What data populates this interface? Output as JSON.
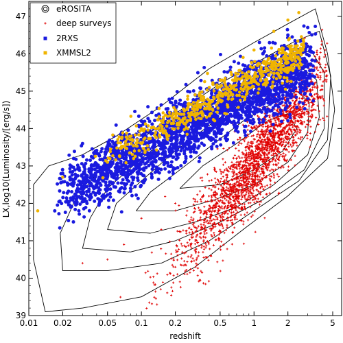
{
  "chart_data": {
    "type": "scatter",
    "xlabel": "redshift",
    "ylabel": "LX,log10(Luminosity/[erg/s])",
    "x_scale": "log",
    "xlim": [
      0.01,
      6
    ],
    "ylim": [
      39,
      47.4
    ],
    "x_ticks": [
      {
        "value": 0.01,
        "label": "0.01"
      },
      {
        "value": 0.02,
        "label": "0.02"
      },
      {
        "value": 0.05,
        "label": "0.05"
      },
      {
        "value": 0.1,
        "label": "0.1"
      },
      {
        "value": 0.2,
        "label": "0.2"
      },
      {
        "value": 0.5,
        "label": "0.5"
      },
      {
        "value": 1,
        "label": "1"
      },
      {
        "value": 2,
        "label": "2"
      },
      {
        "value": 5,
        "label": "5"
      }
    ],
    "y_ticks": [
      {
        "value": 39,
        "label": "39"
      },
      {
        "value": 40,
        "label": "40"
      },
      {
        "value": 41,
        "label": "41"
      },
      {
        "value": 42,
        "label": "42"
      },
      {
        "value": 43,
        "label": "43"
      },
      {
        "value": 44,
        "label": "44"
      },
      {
        "value": 45,
        "label": "45"
      },
      {
        "value": 46,
        "label": "46"
      },
      {
        "value": 47,
        "label": "47"
      }
    ],
    "grid": false,
    "legend_position": "top-left",
    "series": [
      {
        "name": "eROSITA",
        "kind": "contour",
        "color": "#000000",
        "levels": [
          [
            [
              0.014,
              39.1
            ],
            [
              0.03,
              39.2
            ],
            [
              0.1,
              39.5
            ],
            [
              0.3,
              40.3
            ],
            [
              0.8,
              41.3
            ],
            [
              2.0,
              42.2
            ],
            [
              4.5,
              43.2
            ],
            [
              5.2,
              44.5
            ],
            [
              4.5,
              46.0
            ],
            [
              3.5,
              47.2
            ],
            [
              2.0,
              46.8
            ],
            [
              1.0,
              46.3
            ],
            [
              0.4,
              45.6
            ],
            [
              0.15,
              44.6
            ],
            [
              0.06,
              43.8
            ],
            [
              0.03,
              43.3
            ],
            [
              0.015,
              43.0
            ],
            [
              0.011,
              42.5
            ],
            [
              0.011,
              40.5
            ],
            [
              0.014,
              39.1
            ]
          ],
          [
            [
              0.02,
              40.2
            ],
            [
              0.05,
              40.2
            ],
            [
              0.15,
              40.4
            ],
            [
              0.4,
              41.0
            ],
            [
              1.0,
              41.8
            ],
            [
              2.5,
              42.6
            ],
            [
              4.5,
              43.7
            ],
            [
              4.8,
              45.4
            ],
            [
              3.8,
              46.6
            ],
            [
              2.2,
              46.3
            ],
            [
              1.1,
              45.8
            ],
            [
              0.5,
              45.2
            ],
            [
              0.2,
              44.4
            ],
            [
              0.08,
              43.5
            ],
            [
              0.04,
              42.8
            ],
            [
              0.025,
              42.0
            ],
            [
              0.019,
              41.2
            ],
            [
              0.02,
              40.2
            ]
          ],
          [
            [
              0.03,
              40.8
            ],
            [
              0.08,
              40.7
            ],
            [
              0.2,
              41.0
            ],
            [
              0.5,
              41.5
            ],
            [
              1.2,
              42.1
            ],
            [
              2.8,
              42.9
            ],
            [
              4.2,
              44.0
            ],
            [
              4.2,
              45.5
            ],
            [
              3.2,
              46.1
            ],
            [
              2.0,
              45.8
            ],
            [
              1.0,
              45.3
            ],
            [
              0.5,
              44.8
            ],
            [
              0.22,
              44.0
            ],
            [
              0.1,
              43.2
            ],
            [
              0.05,
              42.4
            ],
            [
              0.035,
              41.6
            ],
            [
              0.03,
              40.8
            ]
          ],
          [
            [
              0.05,
              41.3
            ],
            [
              0.12,
              41.2
            ],
            [
              0.3,
              41.5
            ],
            [
              0.7,
              41.9
            ],
            [
              1.5,
              42.5
            ],
            [
              3.0,
              43.3
            ],
            [
              3.8,
              44.3
            ],
            [
              3.6,
              45.3
            ],
            [
              2.7,
              45.6
            ],
            [
              1.7,
              45.3
            ],
            [
              0.9,
              44.8
            ],
            [
              0.45,
              44.2
            ],
            [
              0.2,
              43.4
            ],
            [
              0.1,
              42.6
            ],
            [
              0.06,
              42.0
            ],
            [
              0.05,
              41.3
            ]
          ],
          [
            [
              0.09,
              41.8
            ],
            [
              0.2,
              41.8
            ],
            [
              0.45,
              42.1
            ],
            [
              1.0,
              42.5
            ],
            [
              2.0,
              43.1
            ],
            [
              3.0,
              43.9
            ],
            [
              3.1,
              44.7
            ],
            [
              2.4,
              45.0
            ],
            [
              1.5,
              44.7
            ],
            [
              0.8,
              44.2
            ],
            [
              0.4,
              43.5
            ],
            [
              0.2,
              42.8
            ],
            [
              0.12,
              42.3
            ],
            [
              0.09,
              41.8
            ]
          ],
          [
            [
              0.22,
              42.4
            ],
            [
              0.5,
              42.5
            ],
            [
              1.0,
              42.9
            ],
            [
              1.8,
              43.4
            ],
            [
              2.4,
              44.0
            ],
            [
              2.0,
              44.4
            ],
            [
              1.3,
              44.2
            ],
            [
              0.7,
              43.6
            ],
            [
              0.35,
              43.0
            ],
            [
              0.22,
              42.4
            ]
          ]
        ]
      },
      {
        "name": "deep surveys",
        "kind": "scatter",
        "marker": "plus",
        "color": "#e00000",
        "cloud": {
          "center": [
            1.1,
            43.2
          ],
          "count": 2400
        },
        "points": [
          [
            0.03,
            40.4
          ],
          [
            0.05,
            40.5
          ],
          [
            0.07,
            40.9
          ],
          [
            0.1,
            41.6
          ],
          [
            0.15,
            41.3
          ],
          [
            0.2,
            42.0
          ],
          [
            0.3,
            42.1
          ],
          [
            0.4,
            42.6
          ],
          [
            0.5,
            42.9
          ],
          [
            0.7,
            43.1
          ],
          [
            1.0,
            43.3
          ],
          [
            1.4,
            43.8
          ],
          [
            2.0,
            44.3
          ],
          [
            2.5,
            44.2
          ],
          [
            3.0,
            43.9
          ]
        ]
      },
      {
        "name": "2RXS",
        "kind": "scatter",
        "marker": "circle",
        "color": "#1a1adf",
        "cloud": {
          "center": [
            0.25,
            44.1
          ],
          "count": 2600
        },
        "points": [
          [
            0.017,
            41.8
          ],
          [
            0.02,
            42.8
          ],
          [
            0.025,
            43.2
          ],
          [
            0.03,
            43.6
          ],
          [
            0.05,
            43.0
          ],
          [
            0.07,
            43.8
          ],
          [
            0.1,
            44.2
          ],
          [
            0.2,
            44.6
          ],
          [
            0.3,
            44.9
          ],
          [
            0.5,
            45.3
          ],
          [
            0.8,
            45.7
          ],
          [
            1.2,
            46.0
          ],
          [
            2.0,
            46.5
          ],
          [
            3.0,
            46.7
          ]
        ]
      },
      {
        "name": "XMMSL2",
        "kind": "scatter",
        "marker": "circle",
        "color": "#f0b400",
        "cloud": {
          "center": [
            0.5,
            45.1
          ],
          "count": 650
        },
        "points": [
          [
            0.012,
            41.8
          ],
          [
            0.02,
            42.7
          ],
          [
            0.05,
            43.1
          ],
          [
            0.08,
            43.7
          ],
          [
            0.1,
            44.0
          ],
          [
            0.15,
            44.2
          ],
          [
            0.2,
            44.5
          ],
          [
            0.3,
            44.9
          ],
          [
            0.5,
            45.3
          ],
          [
            0.8,
            45.9
          ],
          [
            1.0,
            46.1
          ],
          [
            1.5,
            46.6
          ],
          [
            2.0,
            46.9
          ],
          [
            2.5,
            47.1
          ]
        ]
      }
    ]
  }
}
